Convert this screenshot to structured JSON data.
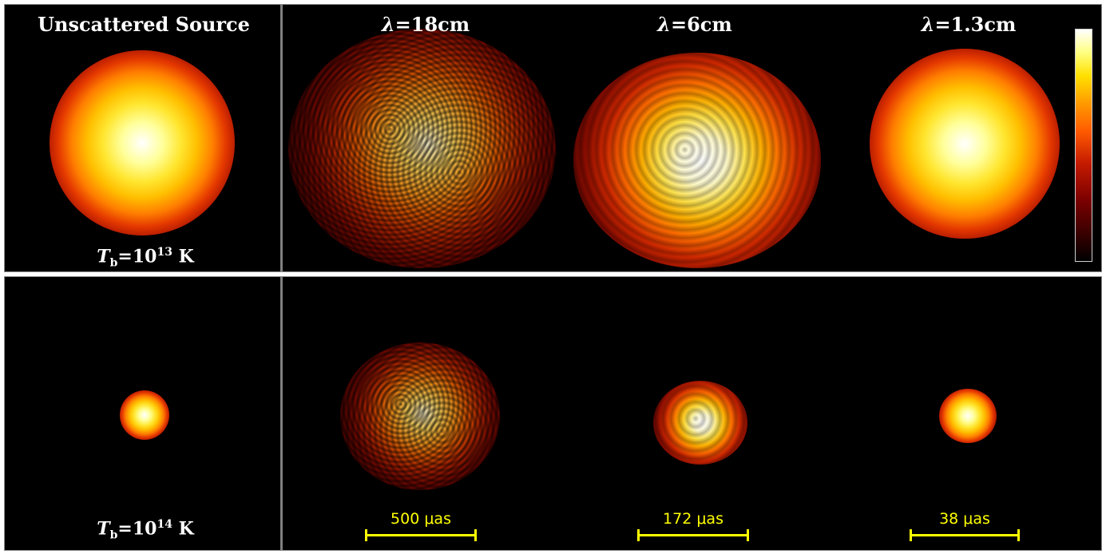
{
  "top_row": {
    "headers": [
      "Unscattered Source",
      "=18cm",
      "=6cm",
      "=1.3cm"
    ],
    "lambda_symbol": "λ",
    "tb_label": {
      "symbol": "T",
      "sub": "b",
      "base": "=10",
      "exp": "13",
      "unit": "K"
    }
  },
  "bottom_row": {
    "tb_label": {
      "symbol": "T",
      "sub": "b",
      "base": "=10",
      "exp": "14",
      "unit": "K"
    },
    "scale_bars": [
      "500 μas",
      "172 μas",
      "38 μas"
    ]
  },
  "colors": {
    "background": "#000000",
    "label_text": "#ffffff",
    "scale_bar": "#ffff00",
    "colormap": "hot"
  }
}
